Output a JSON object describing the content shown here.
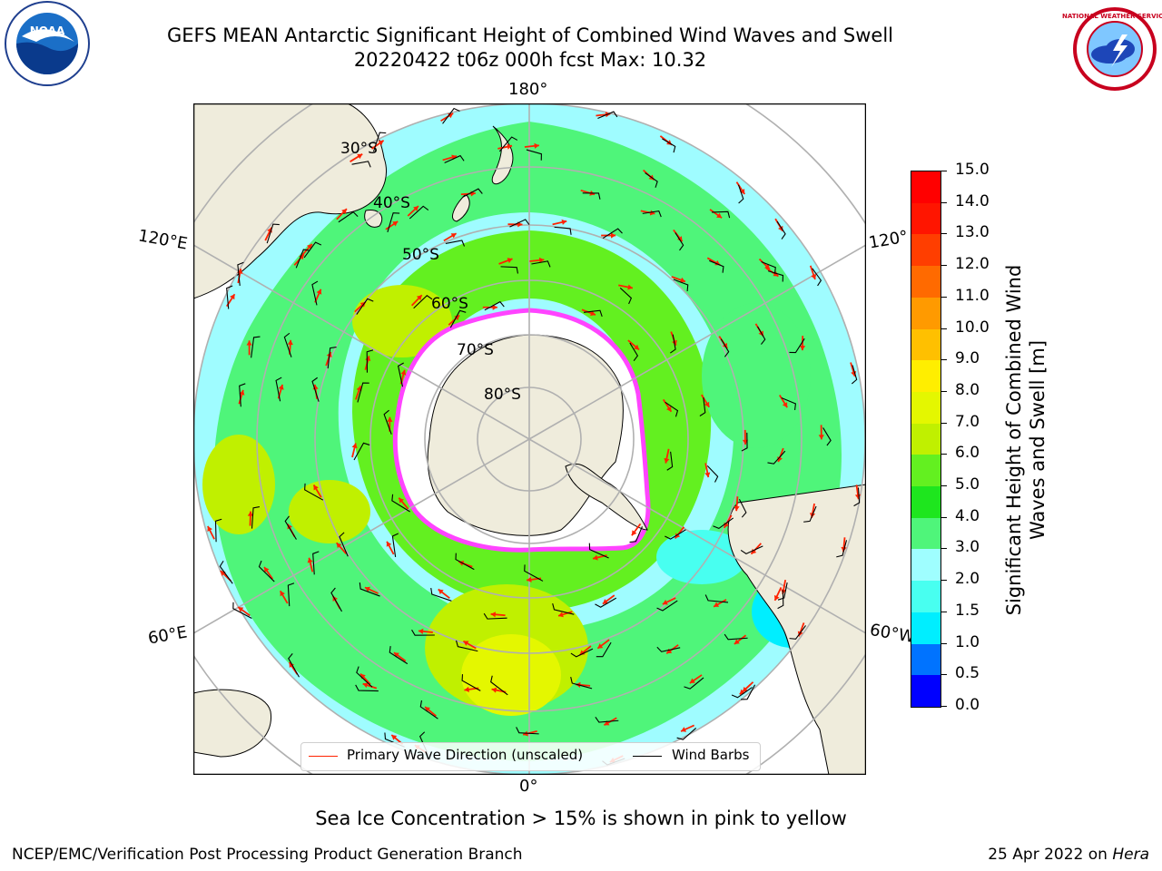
{
  "header": {
    "title_line1": "GEFS MEAN Antarctic Significant Height of Combined Wind Waves and Swell",
    "title_line2": "20220422 t06z 000h fcst   Max: 10.32"
  },
  "logos": {
    "noaa_text": "NOAA",
    "nws_text": "NATIONAL WEATHER SERVICE"
  },
  "map": {
    "projection": "south-polar-stereographic",
    "longitude_labels": {
      "top": "180°",
      "bottom": "0°",
      "left_upper": "120°E",
      "left_lower": "60°E",
      "right_upper": "120°",
      "right_lower": "60°W"
    },
    "latitude_labels": [
      "30°S",
      "40°S",
      "50°S",
      "60°S",
      "70°S",
      "80°S"
    ],
    "colors": {
      "ocean_low": "#9ffcff",
      "ocean_mid": "#48f876",
      "ocean_high": "#e6f600",
      "land": "#efecdc",
      "ice": "#ffffff",
      "ice_edge": "#ff44ff",
      "arrow": "#ff2200",
      "barb": "#000000"
    }
  },
  "legend": {
    "primary_wave": "Primary Wave Direction (unscaled)",
    "wind_barbs": "Wind Barbs",
    "primary_wave_color": "#ff2200",
    "wind_barbs_color": "#000000"
  },
  "colorbar": {
    "label": "Significant Height of Combined Wind Waves and Swell [m]",
    "ticks": [
      "0.0",
      "0.5",
      "1.0",
      "1.5",
      "2.0",
      "3.0",
      "4.0",
      "5.0",
      "6.0",
      "7.0",
      "8.0",
      "9.0",
      "10.0",
      "11.0",
      "12.0",
      "13.0",
      "14.0",
      "15.0"
    ],
    "colors": [
      "#0000ff",
      "#0073ff",
      "#00eeff",
      "#48fff0",
      "#9ffeff",
      "#4ff57a",
      "#1ee61e",
      "#63f020",
      "#c0f000",
      "#e4f700",
      "#ffee00",
      "#ffc000",
      "#ff9a00",
      "#ff6a00",
      "#ff3e00",
      "#ff1500",
      "#ff0000"
    ]
  },
  "footer": {
    "note": "Sea Ice Concentration > 15% is shown in pink to yellow",
    "left": "NCEP/EMC/Verification Post Processing Product Generation Branch",
    "right_date": "25 Apr 2022 on ",
    "right_host": "Hera"
  }
}
